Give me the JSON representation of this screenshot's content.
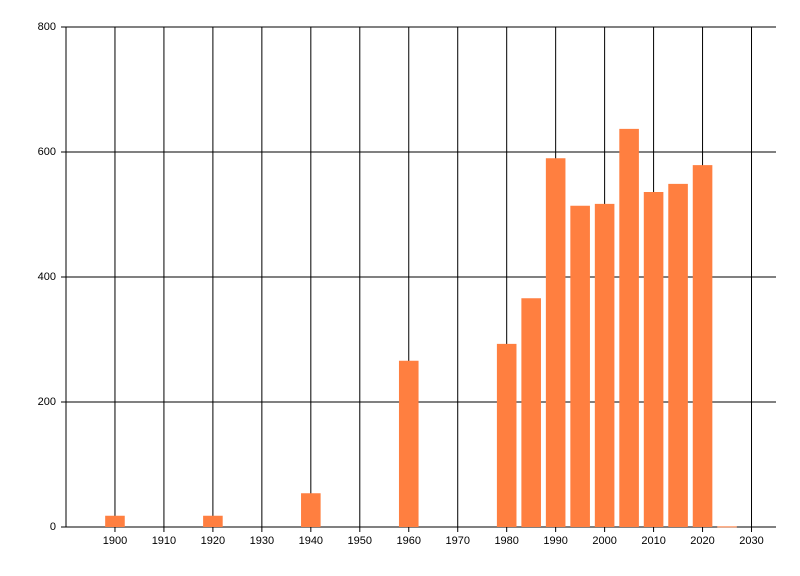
{
  "chart_data": {
    "type": "bar",
    "x": [
      1900,
      1920,
      1940,
      1960,
      1980,
      1985,
      1990,
      1995,
      2000,
      2005,
      2010,
      2015,
      2020,
      2025
    ],
    "values": [
      18,
      18,
      54,
      266,
      293,
      366,
      590,
      514,
      517,
      637,
      536,
      549,
      579,
      1
    ],
    "color": "#ff7f40",
    "xlim": [
      1890,
      2035
    ],
    "xticks": [
      1900,
      1910,
      1920,
      1930,
      1940,
      1950,
      1960,
      1970,
      1980,
      1990,
      2000,
      2010,
      2020,
      2030
    ],
    "ylim": [
      0,
      800
    ],
    "yticks": [
      0,
      200,
      400,
      600,
      800
    ],
    "grid": true
  }
}
